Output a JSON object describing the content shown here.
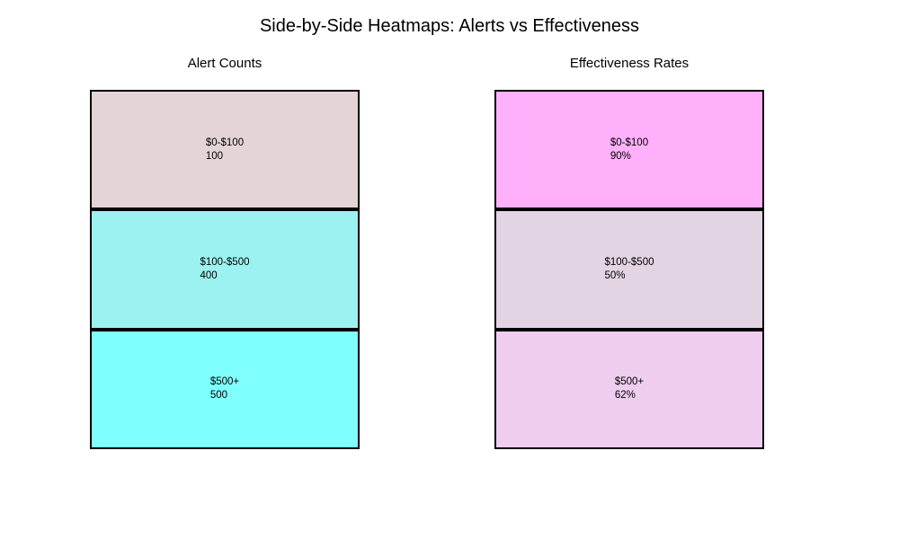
{
  "figure": {
    "title": "Side-by-Side Heatmaps: Alerts vs Effectiveness",
    "background": "#ffffff",
    "border_color": "#000000",
    "text_color": "#000000"
  },
  "chart_data": [
    {
      "type": "heatmap",
      "title": "Alert Counts",
      "orientation": "vertical-stack",
      "rows": 3,
      "cols": 1,
      "categories": [
        "$0-$100",
        "$100-$500",
        "$500+"
      ],
      "values": [
        100,
        400,
        500
      ],
      "value_labels": [
        "100",
        "400",
        "500"
      ],
      "cell_colors": [
        "#E4D4D5",
        "#9CF2F0",
        "#80FFFF"
      ]
    },
    {
      "type": "heatmap",
      "title": "Effectiveness Rates",
      "orientation": "vertical-stack",
      "rows": 3,
      "cols": 1,
      "categories": [
        "$0-$100",
        "$100-$500",
        "$500+"
      ],
      "values": [
        90,
        50,
        62
      ],
      "value_labels": [
        "90%",
        "50%",
        "62%"
      ],
      "cell_colors": [
        "#FFB0FA",
        "#E2D4E3",
        "#EFCDEF"
      ]
    }
  ]
}
